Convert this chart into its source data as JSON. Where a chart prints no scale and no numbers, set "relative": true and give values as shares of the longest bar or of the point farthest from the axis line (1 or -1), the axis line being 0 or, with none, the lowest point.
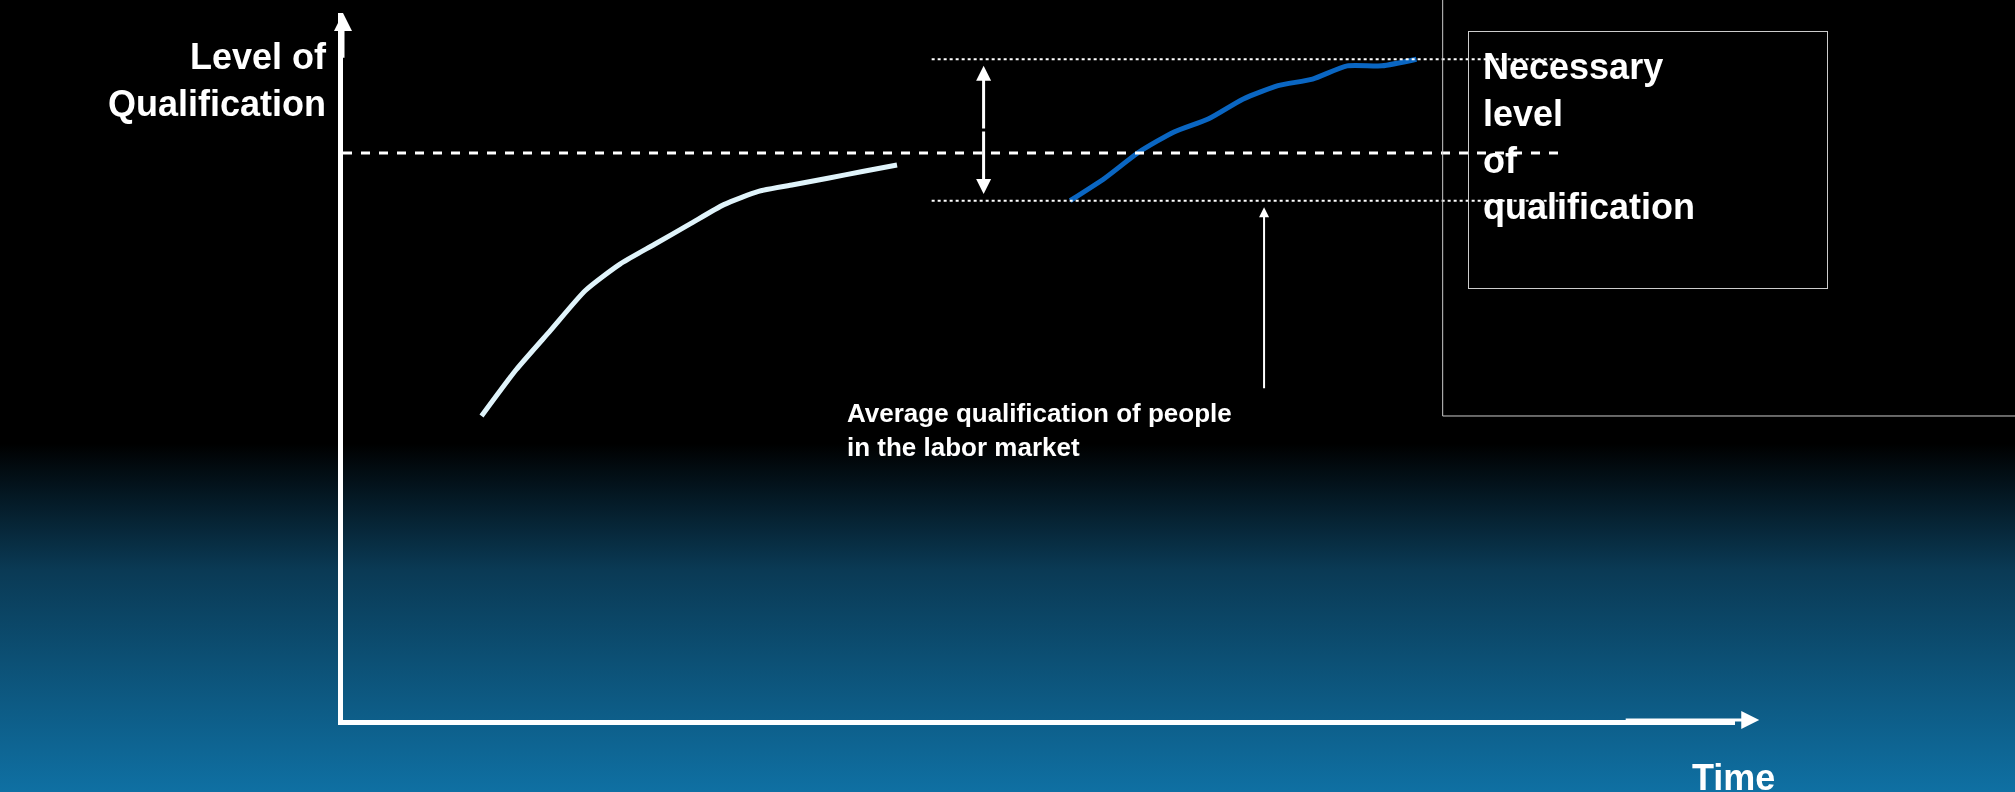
{
  "chart_data": {
    "type": "line",
    "relative": true,
    "ylabel": "Level of Qualification",
    "xlabel": "Time",
    "categories": [
      null,
      null,
      null,
      null,
      null,
      null,
      null,
      null,
      null,
      null,
      null,
      null,
      null,
      null,
      null,
      null,
      null,
      null,
      null,
      null,
      null,
      null,
      null,
      null,
      null,
      null,
      null,
      null,
      null,
      null,
      null,
      null,
      null,
      null,
      null,
      null,
      null,
      null,
      null,
      null,
      null
    ],
    "series": [
      {
        "color": "#e0f4fb",
        "values": [
          null,
          null,
          null,
          null,
          0.46,
          0.53,
          0.59,
          0.65,
          0.69,
          0.72,
          0.75,
          0.78,
          0.8,
          0.81,
          0.82,
          0.83,
          0.84,
          null,
          null,
          null,
          null,
          null,
          null,
          null,
          null,
          null,
          null,
          null,
          null,
          null,
          null,
          null,
          null,
          null,
          null,
          null,
          null,
          null,
          null,
          null,
          null
        ]
      },
      {
        "color": "#0a66c2",
        "values": [
          null,
          null,
          null,
          null,
          null,
          null,
          null,
          null,
          null,
          null,
          null,
          null,
          null,
          null,
          null,
          null,
          null,
          null,
          null,
          null,
          null,
          0.786,
          0.82,
          0.86,
          0.89,
          0.91,
          0.94,
          0.96,
          0.97,
          0.99,
          0.99,
          1.0,
          null,
          null,
          null,
          null,
          null,
          null,
          null,
          null,
          null
        ]
      }
    ],
    "ref_lines": [
      {
        "axis": "y",
        "value": 0.858,
        "label": "Necessary level of qualification",
        "color": "#ffffff",
        "line_style": "dashed"
      },
      {
        "axis": "y",
        "value": 1.0,
        "color": "#ffffff",
        "line_style": "dotted"
      },
      {
        "axis": "y",
        "value": 0.786,
        "color": "#ffffff",
        "line_style": "dotted"
      }
    ],
    "annotations": [
      "Average qualification of people in the labor market"
    ],
    "grid": false,
    "marker": "none"
  }
}
